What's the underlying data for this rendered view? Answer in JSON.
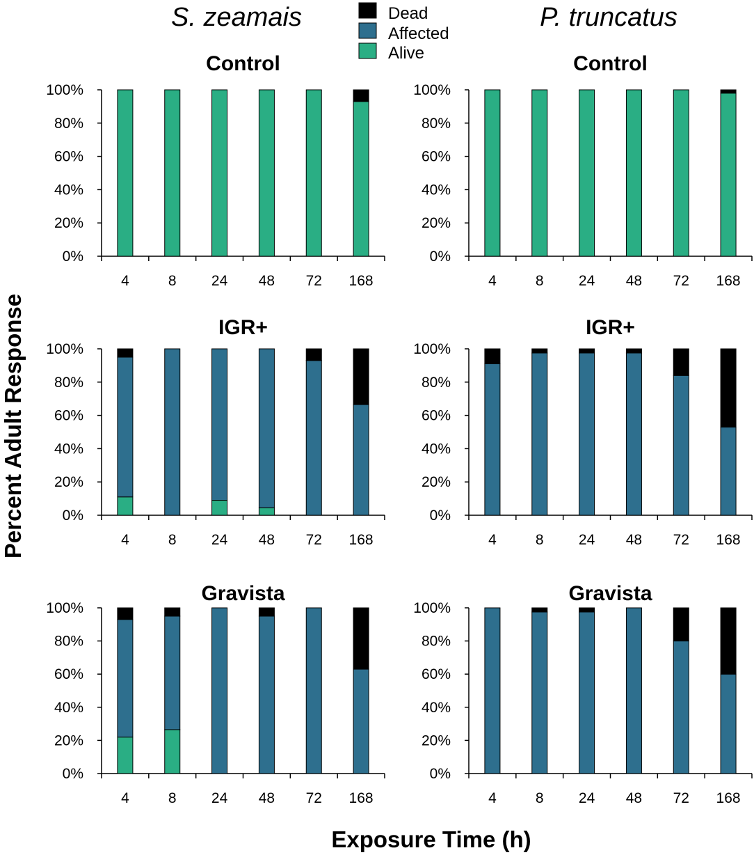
{
  "figure": {
    "col_titles": [
      "S. zeamais",
      "P. truncatus"
    ],
    "ylabel": "Percent Adult Response",
    "xlabel": "Exposure Time (h)"
  },
  "legend": [
    {
      "label": "Dead",
      "color": "#000000"
    },
    {
      "label": "Affected",
      "color": "#2e6f8e"
    },
    {
      "label": "Alive",
      "color": "#2aae84"
    }
  ],
  "chart_data": [
    {
      "type": "bar",
      "stacked": true,
      "species": "S. zeamais",
      "title": "Control",
      "categories": [
        "4",
        "8",
        "24",
        "48",
        "72",
        "168"
      ],
      "ylim": [
        0,
        100
      ],
      "yticks": [
        "0%",
        "20%",
        "40%",
        "60%",
        "80%",
        "100%"
      ],
      "series": [
        {
          "name": "Alive",
          "values": [
            100,
            100,
            100,
            100,
            100,
            93
          ]
        },
        {
          "name": "Affected",
          "values": [
            0,
            0,
            0,
            0,
            0,
            0
          ]
        },
        {
          "name": "Dead",
          "values": [
            0,
            0,
            0,
            0,
            0,
            7
          ]
        }
      ]
    },
    {
      "type": "bar",
      "stacked": true,
      "species": "P. truncatus",
      "title": "Control",
      "categories": [
        "4",
        "8",
        "24",
        "48",
        "72",
        "168"
      ],
      "ylim": [
        0,
        100
      ],
      "yticks": [
        "0%",
        "20%",
        "40%",
        "60%",
        "80%",
        "100%"
      ],
      "series": [
        {
          "name": "Alive",
          "values": [
            100,
            100,
            100,
            100,
            100,
            98
          ]
        },
        {
          "name": "Affected",
          "values": [
            0,
            0,
            0,
            0,
            0,
            0
          ]
        },
        {
          "name": "Dead",
          "values": [
            0,
            0,
            0,
            0,
            0,
            2
          ]
        }
      ]
    },
    {
      "type": "bar",
      "stacked": true,
      "species": "S. zeamais",
      "title": "IGR+",
      "categories": [
        "4",
        "8",
        "24",
        "48",
        "72",
        "168"
      ],
      "ylim": [
        0,
        100
      ],
      "yticks": [
        "0%",
        "20%",
        "40%",
        "60%",
        "80%",
        "100%"
      ],
      "series": [
        {
          "name": "Alive",
          "values": [
            11,
            0,
            9,
            4.5,
            0,
            0
          ]
        },
        {
          "name": "Affected",
          "values": [
            84,
            100,
            91,
            95.5,
            93,
            66.5
          ]
        },
        {
          "name": "Dead",
          "values": [
            5,
            0,
            0,
            0,
            7,
            33.5
          ]
        }
      ]
    },
    {
      "type": "bar",
      "stacked": true,
      "species": "P. truncatus",
      "title": "IGR+",
      "categories": [
        "4",
        "8",
        "24",
        "48",
        "72",
        "168"
      ],
      "ylim": [
        0,
        100
      ],
      "yticks": [
        "0%",
        "20%",
        "40%",
        "60%",
        "80%",
        "100%"
      ],
      "series": [
        {
          "name": "Alive",
          "values": [
            0,
            0,
            0,
            0,
            0,
            0
          ]
        },
        {
          "name": "Affected",
          "values": [
            91,
            97.5,
            97.5,
            97.5,
            84,
            53
          ]
        },
        {
          "name": "Dead",
          "values": [
            9,
            2.5,
            2.5,
            2.5,
            16,
            47
          ]
        }
      ]
    },
    {
      "type": "bar",
      "stacked": true,
      "species": "S. zeamais",
      "title": "Gravista",
      "categories": [
        "4",
        "8",
        "24",
        "48",
        "72",
        "168"
      ],
      "ylim": [
        0,
        100
      ],
      "yticks": [
        "0%",
        "20%",
        "40%",
        "60%",
        "80%",
        "100%"
      ],
      "series": [
        {
          "name": "Alive",
          "values": [
            22,
            26.5,
            0,
            0,
            0,
            0
          ]
        },
        {
          "name": "Affected",
          "values": [
            71,
            68.5,
            100,
            95,
            100,
            63
          ]
        },
        {
          "name": "Dead",
          "values": [
            7,
            5,
            0,
            5,
            0,
            37
          ]
        }
      ]
    },
    {
      "type": "bar",
      "stacked": true,
      "species": "P. truncatus",
      "title": "Gravista",
      "categories": [
        "4",
        "8",
        "24",
        "48",
        "72",
        "168"
      ],
      "ylim": [
        0,
        100
      ],
      "yticks": [
        "0%",
        "20%",
        "40%",
        "60%",
        "80%",
        "100%"
      ],
      "series": [
        {
          "name": "Alive",
          "values": [
            0,
            0,
            0,
            0,
            0,
            0
          ]
        },
        {
          "name": "Affected",
          "values": [
            100,
            97.5,
            97.5,
            100,
            80,
            60
          ]
        },
        {
          "name": "Dead",
          "values": [
            0,
            2.5,
            2.5,
            0,
            20,
            40
          ]
        }
      ]
    }
  ]
}
